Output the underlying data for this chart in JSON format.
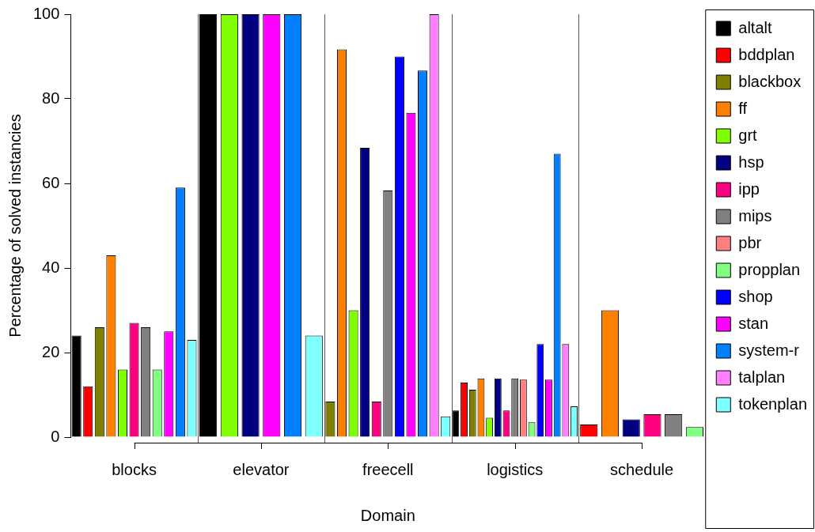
{
  "chart_data": {
    "type": "bar",
    "xlabel": "Domain",
    "ylabel": "Percentage of solved instancies",
    "categories": [
      "blocks",
      "elevator",
      "freecell",
      "logistics",
      "schedule"
    ],
    "ylim": [
      0,
      100
    ],
    "yticks": [
      0,
      20,
      40,
      60,
      80,
      100
    ],
    "legend": "right",
    "series": [
      {
        "name": "altalt",
        "color": "#000000",
        "values": [
          24,
          100,
          null,
          6.3,
          null
        ]
      },
      {
        "name": "bddplan",
        "color": "#ff0000",
        "values": [
          12,
          null,
          null,
          12.9,
          3
        ]
      },
      {
        "name": "blackbox",
        "color": "#808000",
        "values": [
          26,
          null,
          8.4,
          11.2,
          null
        ]
      },
      {
        "name": "ff",
        "color": "#ff8000",
        "values": [
          43,
          null,
          91.7,
          13.9,
          30
        ]
      },
      {
        "name": "grt",
        "color": "#80ff00",
        "values": [
          16,
          100,
          30,
          4.6,
          null
        ]
      },
      {
        "name": "hsp",
        "color": "#000080",
        "values": [
          null,
          100,
          68.4,
          13.9,
          4.2
        ]
      },
      {
        "name": "ipp",
        "color": "#ff0080",
        "values": [
          27,
          null,
          8.4,
          6.3,
          5.4
        ]
      },
      {
        "name": "mips",
        "color": "#808080",
        "values": [
          26,
          null,
          58.3,
          13.9,
          5.4
        ]
      },
      {
        "name": "pbr",
        "color": "#ff8080",
        "values": [
          null,
          null,
          null,
          13.6,
          null
        ]
      },
      {
        "name": "propplan",
        "color": "#80ff80",
        "values": [
          16,
          null,
          null,
          3.5,
          2.4
        ]
      },
      {
        "name": "shop",
        "color": "#0000ff",
        "values": [
          null,
          null,
          90,
          22,
          null
        ]
      },
      {
        "name": "stan",
        "color": "#ff00ff",
        "values": [
          25,
          100,
          76.7,
          13.6,
          null
        ]
      },
      {
        "name": "system-r",
        "color": "#0080ff",
        "values": [
          59,
          100,
          86.7,
          67,
          null
        ]
      },
      {
        "name": "talplan",
        "color": "#ff80ff",
        "values": [
          null,
          null,
          100,
          22,
          null
        ]
      },
      {
        "name": "tokenplan",
        "color": "#80ffff",
        "values": [
          23,
          24,
          4.9,
          7.3,
          null
        ]
      }
    ]
  }
}
